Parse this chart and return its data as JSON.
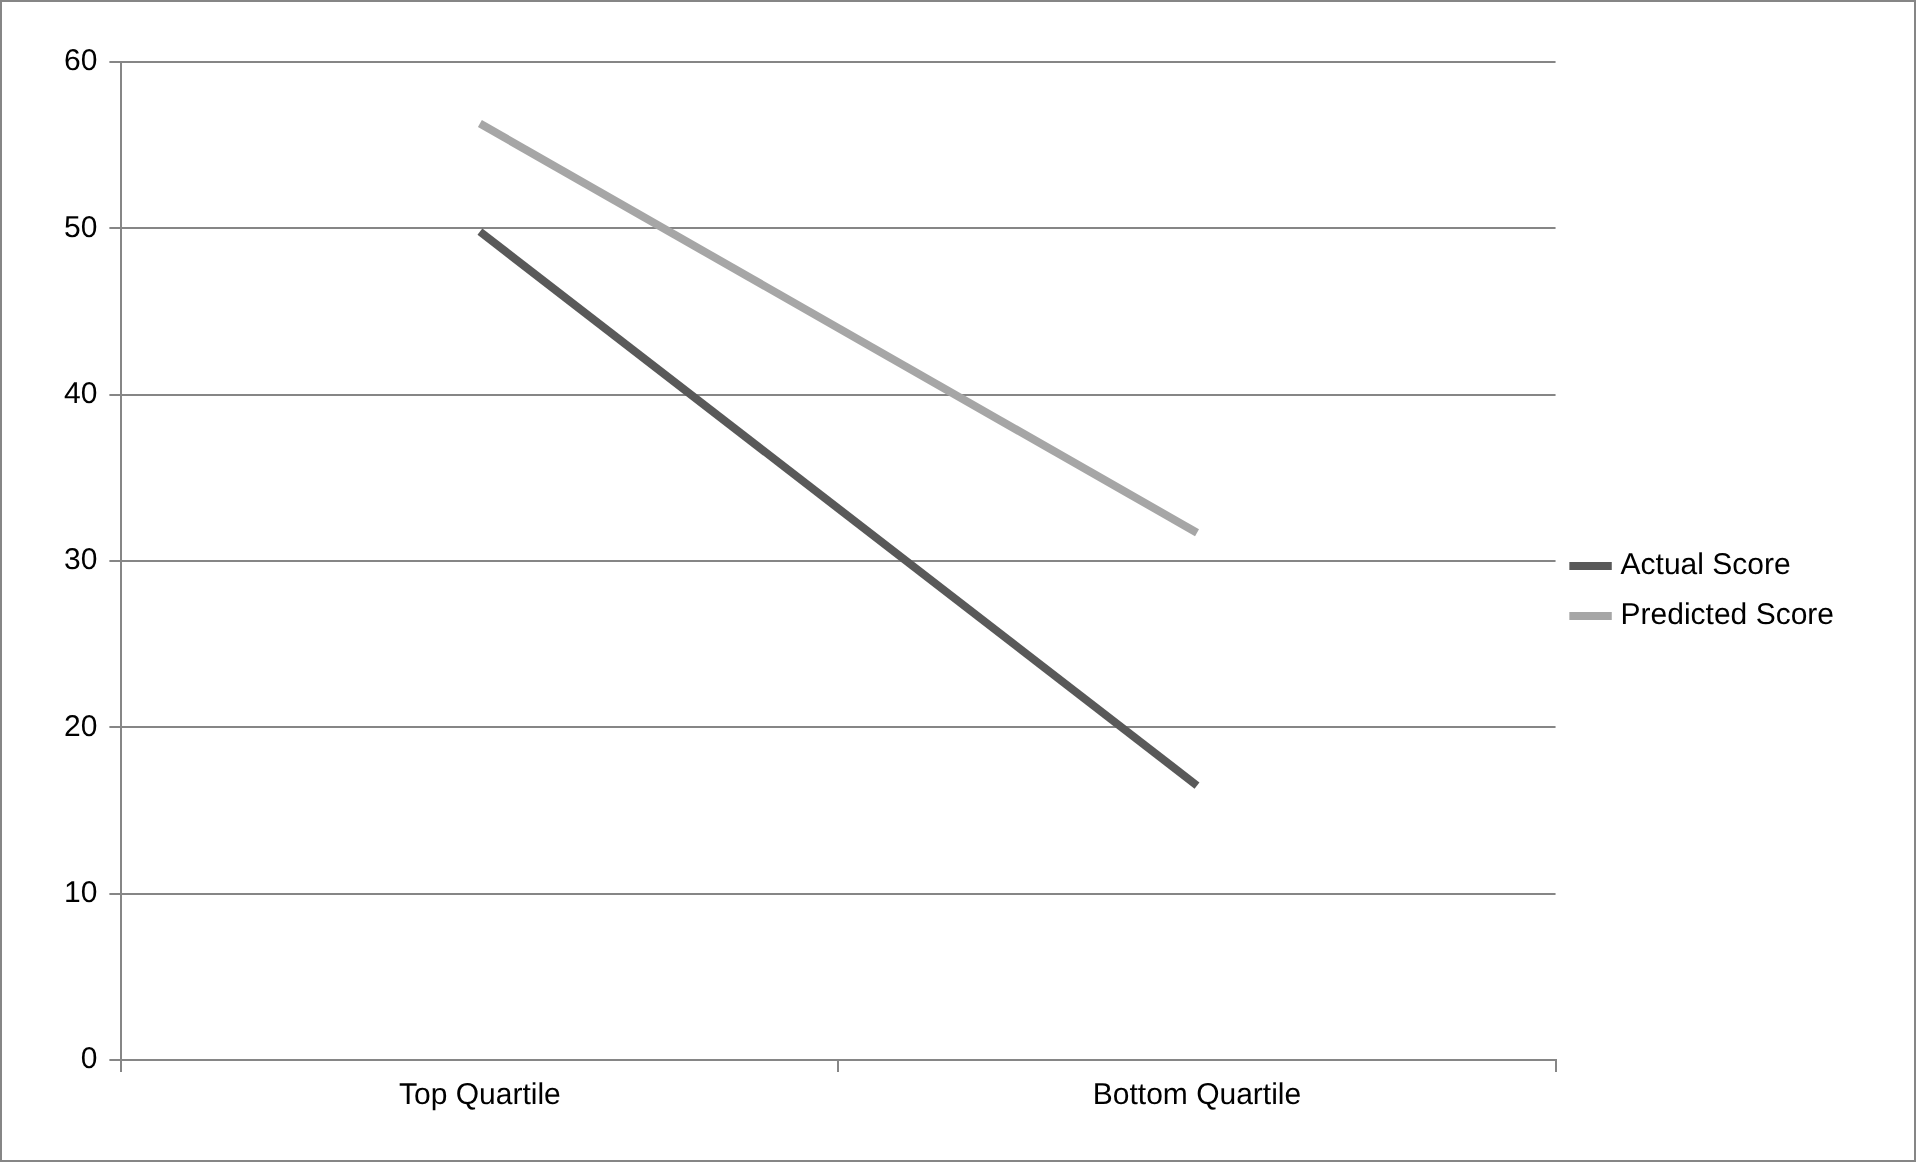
{
  "chart_data": {
    "type": "line",
    "categories": [
      "Top Quartile",
      "Bottom Quartile"
    ],
    "series": [
      {
        "name": "Actual Score",
        "color": "#595959",
        "values": [
          49.8,
          16.5
        ]
      },
      {
        "name": "Predicted Score",
        "color": "#a6a6a6",
        "values": [
          56.3,
          31.7
        ]
      }
    ],
    "ylim": [
      0,
      60
    ],
    "yticks": [
      0,
      10,
      20,
      30,
      40,
      50,
      60
    ],
    "grid": "y",
    "legend": "right",
    "marker": "none",
    "line_style": "solid"
  }
}
